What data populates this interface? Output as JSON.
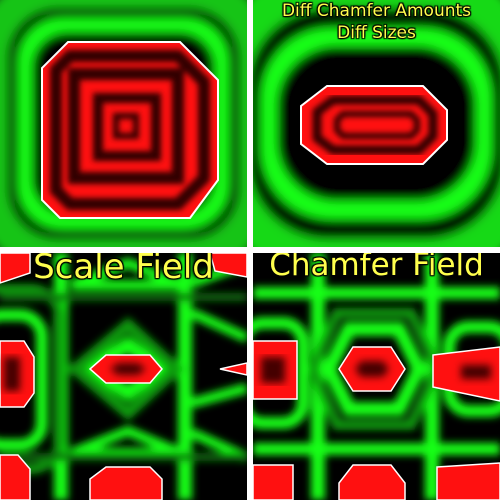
{
  "panels": {
    "top_left": {
      "caption_line1": "",
      "caption_line2": ""
    },
    "top_right": {
      "caption_line1": "Diff Chamfer Amounts",
      "caption_line2": "Diff Sizes"
    },
    "bottom_left": {
      "caption_line1": "Scale Field"
    },
    "bottom_right": {
      "caption_line1": "Chamfer Field"
    }
  },
  "colors": {
    "red": "#ff1010",
    "green": "#10ff10",
    "dark": "#000000",
    "divider": "#ffffff",
    "caption": "#ffff4d"
  }
}
